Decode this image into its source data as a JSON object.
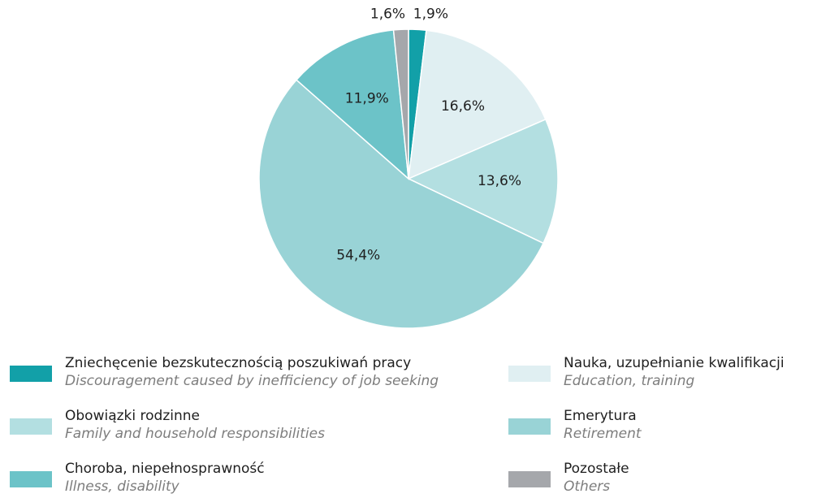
{
  "chart_data": {
    "type": "pie",
    "slices": [
      {
        "pl": "Zniechęcenie bezskutecznością  poszukiwań pracy",
        "en": "Discouragement caused by inefficiency of job seeking",
        "value": 1.9,
        "label": "1,9%",
        "color": "#12a0a8"
      },
      {
        "pl": "Nauka, uzupełnianie kwalifikacji",
        "en": "Education, training",
        "value": 16.6,
        "label": "16,6%",
        "color": "#e0eff2"
      },
      {
        "pl": "Obowiązki rodzinne",
        "en": "Family and household responsibilities",
        "value": 13.6,
        "label": "13,6%",
        "color": "#b3dfe1"
      },
      {
        "pl": "Emerytura",
        "en": "Retirement",
        "value": 54.4,
        "label": "54,4%",
        "color": "#99d3d6"
      },
      {
        "pl": "Choroba, niepełnosprawność",
        "en": "Illness, disability",
        "value": 11.9,
        "label": "11,9%",
        "color": "#6cc3c8"
      },
      {
        "pl": "Pozostałe",
        "en": "Others",
        "value": 1.6,
        "label": "1,6%",
        "color": "#a5a7ab"
      }
    ],
    "legend_position": "bottom"
  }
}
